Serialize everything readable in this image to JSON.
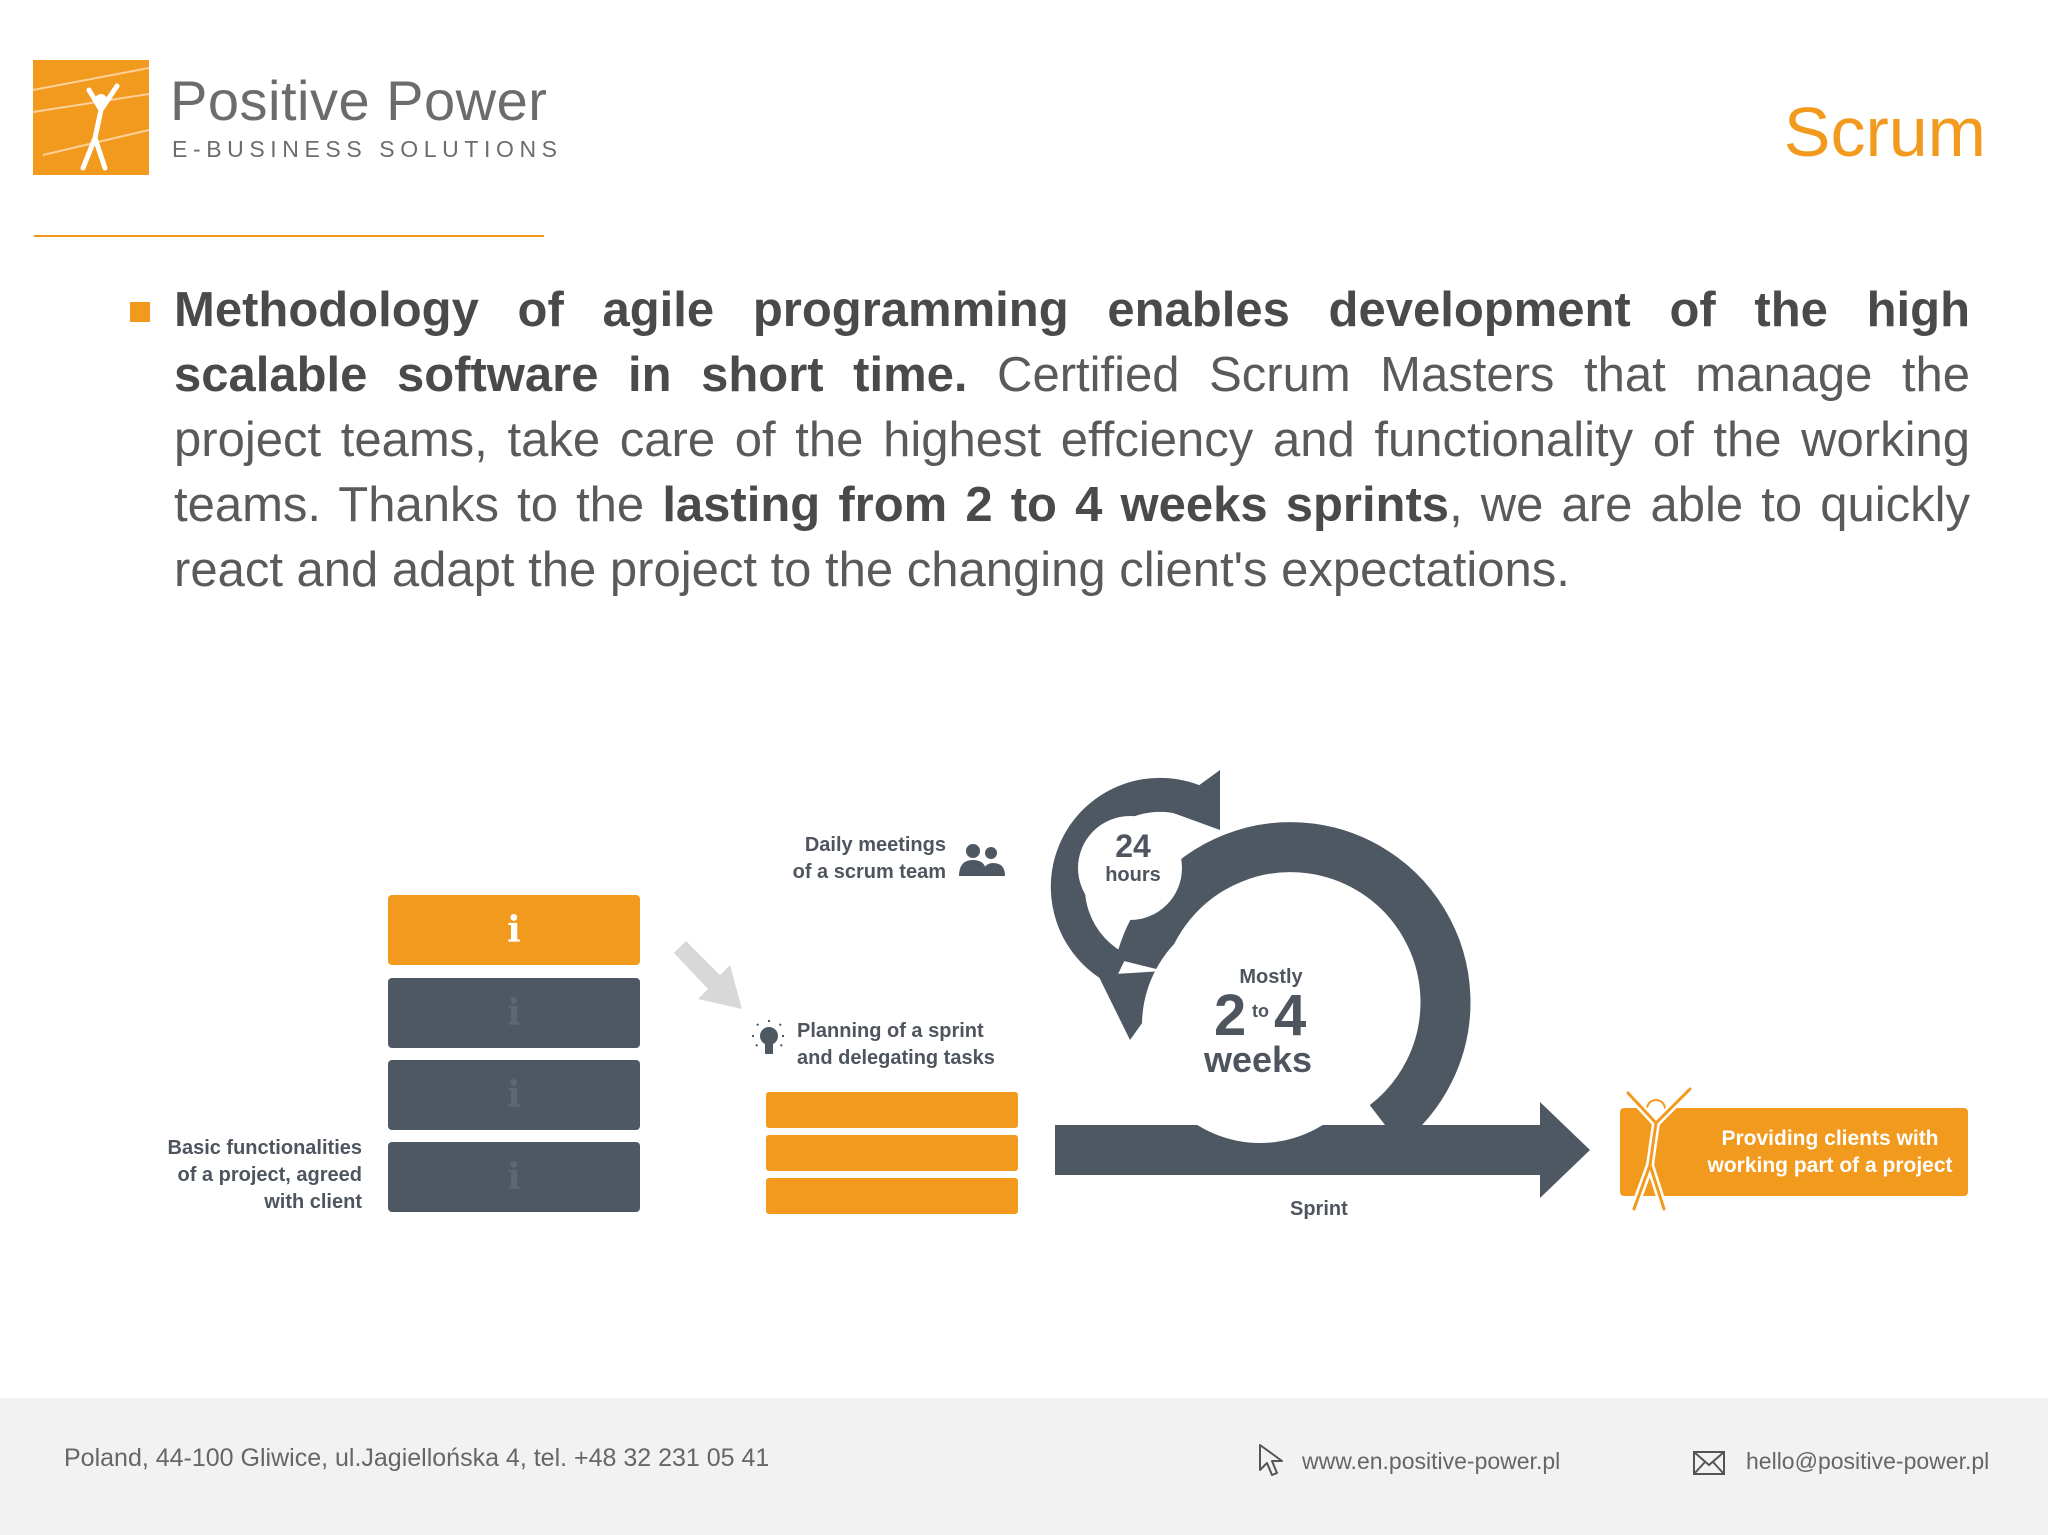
{
  "header": {
    "brand_name": "Positive Power",
    "brand_tagline": "E-BUSINESS SOLUTIONS",
    "slide_title": "Scrum"
  },
  "body": {
    "p1_bold": "Methodology of agile programming enables development of the high scalable software in short time.",
    "p2": " Certified Scrum Masters that manage the project teams, take care of the highest effciency and functionality of the working teams. Thanks to the ",
    "p3_bold": "lasting from 2 to 4 weeks sprints",
    "p4": ", we are able to quickly react and adapt the project to the changing client's expectations."
  },
  "diagram": {
    "backlog_label": [
      "Basic functionalities",
      "of a project, agreed",
      "with client"
    ],
    "info_glyph": "i",
    "planning_label": [
      "Planning of a sprint",
      "and delegating tasks"
    ],
    "daily_label": [
      "Daily meetings",
      "of a scrum team"
    ],
    "daily_number": "24",
    "daily_unit": "hours",
    "sprint_mostly": "Mostly",
    "sprint_from": "2",
    "sprint_to_word": "to",
    "sprint_to": "4",
    "sprint_weeks": "weeks",
    "sprint_label": "Sprint",
    "deliver_label": [
      "Providing clients with",
      "working part of a project"
    ]
  },
  "footer": {
    "address": "Poland, 44-100 Gliwice, ul.Jagiellońska 4, tel. +48 32 231 05 41",
    "website": "www.en.positive-power.pl",
    "email": "hello@positive-power.pl"
  },
  "colors": {
    "accent": "#f29a1d",
    "slate": "#4e5863"
  }
}
